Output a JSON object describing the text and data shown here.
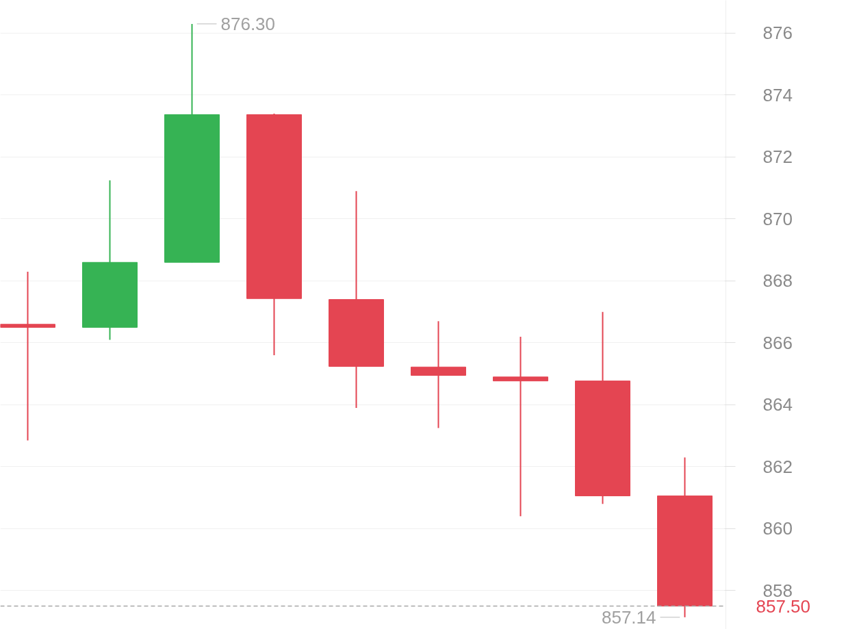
{
  "chart_data": {
    "type": "candlestick",
    "categories": [
      null,
      null,
      null,
      null,
      null,
      null,
      null,
      null,
      null
    ],
    "ohlc": [
      [
        866.6,
        868.3,
        862.85,
        866.5
      ],
      [
        866.5,
        871.25,
        866.1,
        868.6
      ],
      [
        868.6,
        876.3,
        868.6,
        873.37
      ],
      [
        873.37,
        873.4,
        865.6,
        867.43
      ],
      [
        867.4,
        870.9,
        863.9,
        865.24
      ],
      [
        865.22,
        866.7,
        863.25,
        864.95
      ],
      [
        864.9,
        866.2,
        860.4,
        864.77
      ],
      [
        864.77,
        867.0,
        860.8,
        861.06
      ],
      [
        861.06,
        862.3,
        857.14,
        857.5
      ]
    ],
    "colors": [
      "#e44552",
      "#36b354",
      "#36b354",
      "#e44552",
      "#e44552",
      "#e44552",
      "#e44552",
      "#e44552",
      "#e44552"
    ],
    "ylim": [
      856.75,
      877.06
    ],
    "yticks": [
      858,
      860,
      862,
      864,
      866,
      868,
      870,
      872,
      874,
      876
    ],
    "grid": "y",
    "ref_lines": [
      {
        "axis": "y",
        "value": 857.5,
        "label": "857.50",
        "color": "#a6a6a6",
        "line_style": "dashed"
      }
    ],
    "annotations": [
      "876.30",
      "857.14"
    ]
  }
}
